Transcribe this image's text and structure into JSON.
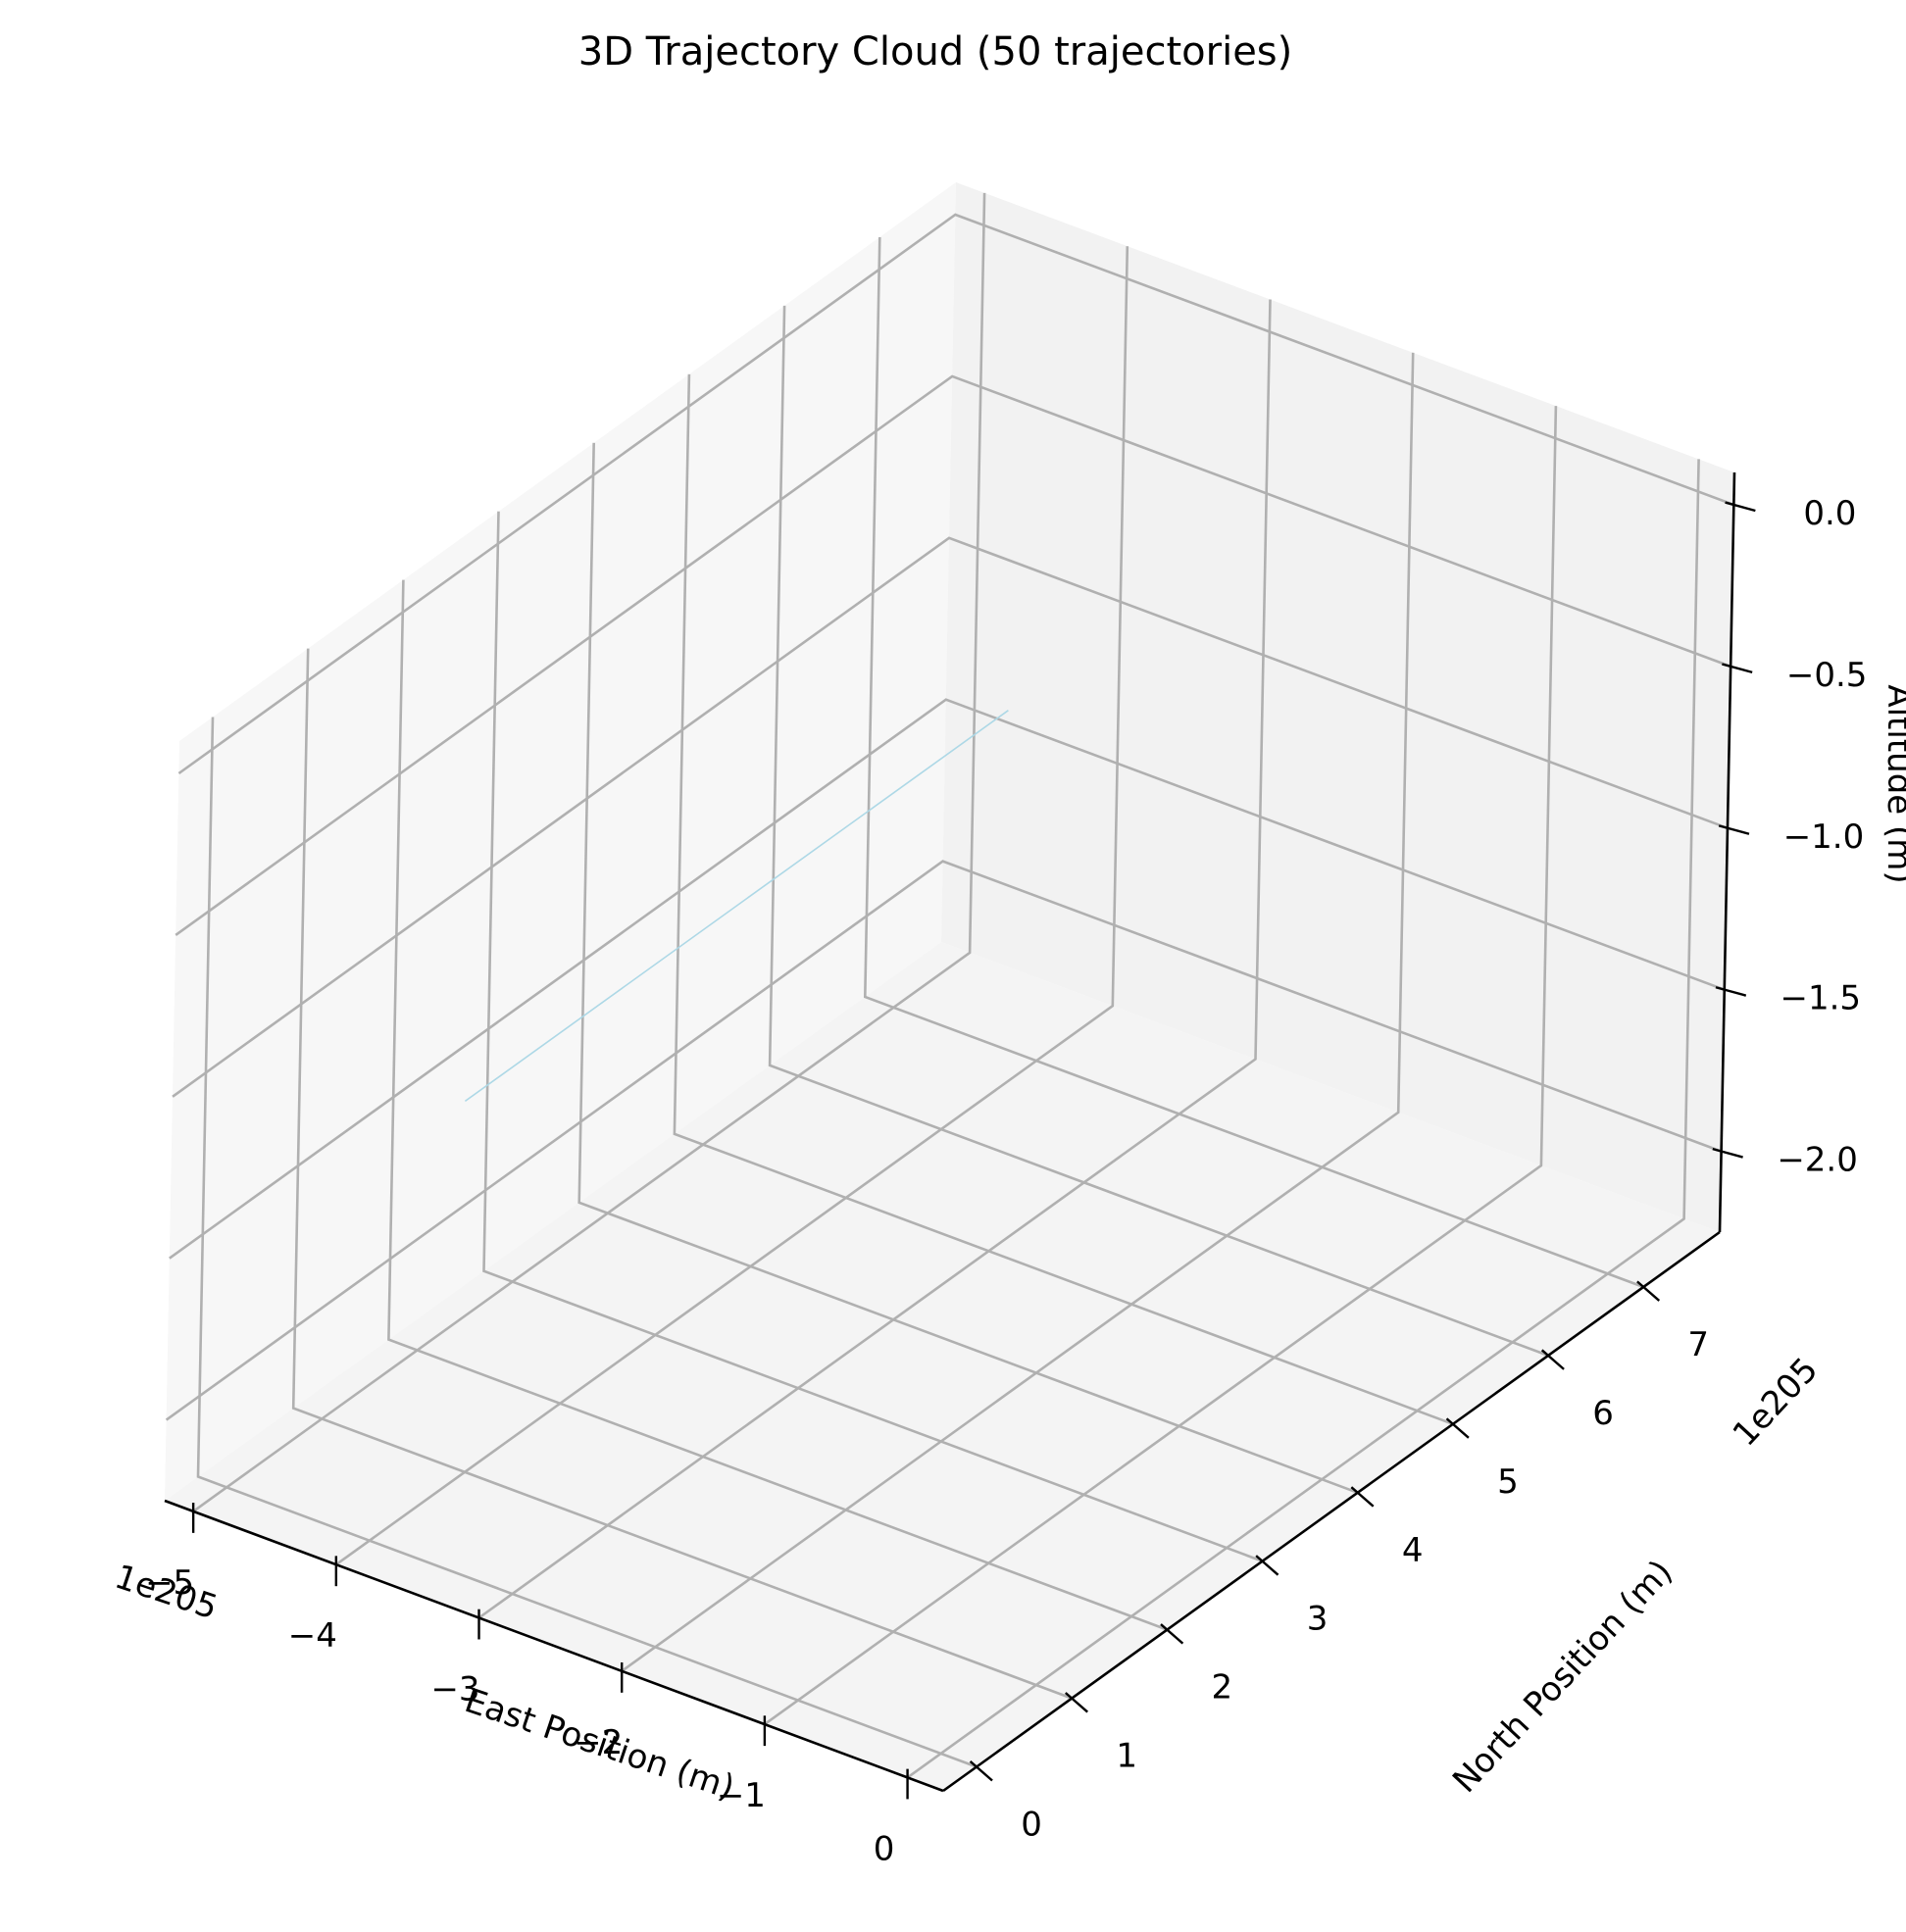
{
  "chart_data": {
    "type": "line3d",
    "title": "3D Trajectory Cloud (50 trajectories)",
    "xlabel": "East Position (m)",
    "ylabel": "North Position (m)",
    "zlabel": "Altitude (m)",
    "x_offset_text": "1e205",
    "y_offset_text": "1e205",
    "x_ticks": [
      -5,
      -4,
      -3,
      -2,
      -1,
      0
    ],
    "y_ticks": [
      0,
      1,
      2,
      3,
      4,
      5,
      6,
      7
    ],
    "z_ticks": [
      0.0,
      -0.5,
      -1.0,
      -1.5,
      -2.0
    ],
    "x_tick_labels": [
      "−5",
      "−4",
      "−3",
      "−2",
      "−1",
      "0"
    ],
    "y_tick_labels": [
      "0",
      "1",
      "2",
      "3",
      "4",
      "5",
      "6",
      "7"
    ],
    "z_tick_labels": [
      "0.0",
      "−0.5",
      "−1.0",
      "−1.5",
      "−2.0"
    ],
    "xlim": [
      -5.2,
      0.25
    ],
    "ylim": [
      -0.35,
      7.8
    ],
    "zlim": [
      -2.25,
      0.1
    ],
    "grid": true,
    "colors": {
      "grid": "#b0b0b0",
      "pane_side": "#f7f7f7",
      "pane_back": "#f2f2f2",
      "pane_floor": "#f4f4f4",
      "trajectory": "#add8e6"
    },
    "series": [
      {
        "points": [
          [
            -4.7,
            7.7,
            -1.43
          ],
          [
            -4.7,
            2.0,
            -1.43
          ]
        ]
      }
    ]
  }
}
